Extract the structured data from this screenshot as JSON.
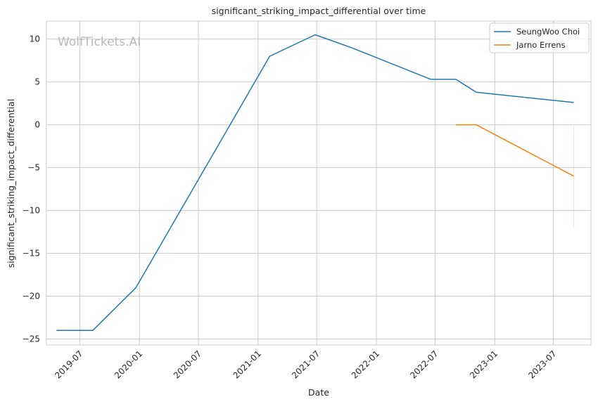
{
  "chart_data": {
    "type": "line",
    "title": "significant_striking_impact_differential over time",
    "xlabel": "Date",
    "ylabel": "significant_striking_impact_differential",
    "watermark": "WolfTickets.AI",
    "grid": true,
    "legend_position": "top-right",
    "xlim": [
      "2019-03-20",
      "2023-10-25"
    ],
    "ylim": [
      -25.7,
      12.1
    ],
    "x_ticks": [
      {
        "date": "2019-07-01",
        "label": "2019-07"
      },
      {
        "date": "2020-01-01",
        "label": "2020-01"
      },
      {
        "date": "2020-07-01",
        "label": "2020-07"
      },
      {
        "date": "2021-01-01",
        "label": "2021-01"
      },
      {
        "date": "2021-07-01",
        "label": "2021-07"
      },
      {
        "date": "2022-01-01",
        "label": "2022-01"
      },
      {
        "date": "2022-07-01",
        "label": "2022-07"
      },
      {
        "date": "2023-01-01",
        "label": "2023-01"
      },
      {
        "date": "2023-07-01",
        "label": "2023-07"
      }
    ],
    "y_ticks": [
      {
        "value": 10,
        "label": "10"
      },
      {
        "value": 5,
        "label": "5"
      },
      {
        "value": 0,
        "label": "0"
      },
      {
        "value": -5,
        "label": "−5"
      },
      {
        "value": -10,
        "label": "−10"
      },
      {
        "value": -15,
        "label": "−15"
      },
      {
        "value": -20,
        "label": "−20"
      },
      {
        "value": -25,
        "label": "−25"
      }
    ],
    "series": [
      {
        "name": "SeungWoo Choi",
        "color": "#1f77b4",
        "points": [
          {
            "x": "2019-04-20",
            "y": -24.0
          },
          {
            "x": "2019-08-10",
            "y": -24.0
          },
          {
            "x": "2019-12-21",
            "y": -19.0
          },
          {
            "x": "2021-02-06",
            "y": 8.0
          },
          {
            "x": "2021-06-26",
            "y": 10.5
          },
          {
            "x": "2021-10-16",
            "y": 9.0
          },
          {
            "x": "2022-06-18",
            "y": 5.3
          },
          {
            "x": "2022-09-03",
            "y": 5.3
          },
          {
            "x": "2022-11-05",
            "y": 3.8
          },
          {
            "x": "2023-09-02",
            "y": 2.6
          }
        ]
      },
      {
        "name": "Jarno Errens",
        "color": "#ff7f0e",
        "points": [
          {
            "x": "2022-09-03",
            "y": 0.0
          },
          {
            "x": "2022-11-05",
            "y": 0.0
          },
          {
            "x": "2023-09-02",
            "y": -6.0
          }
        ]
      }
    ],
    "faint_band": {
      "x": "2023-09-02",
      "y_from": 0.0,
      "y_to": -12.0,
      "color": "#ff7f0e"
    }
  }
}
